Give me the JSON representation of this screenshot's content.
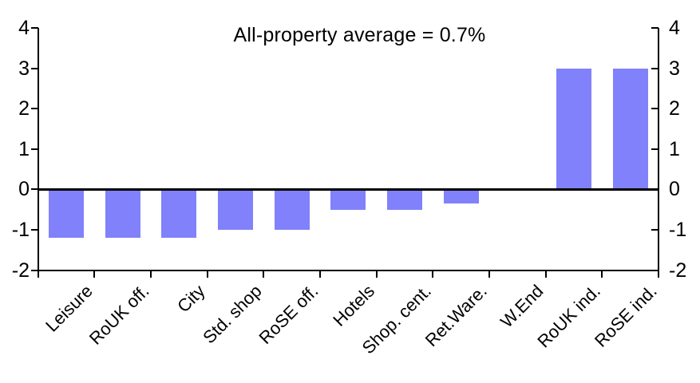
{
  "chart_data": {
    "type": "bar",
    "title": "All-property average = 0.7%",
    "categories": [
      "Leisure",
      "RoUK off.",
      "City",
      "Std. shop",
      "RoSE off.",
      "Hotels",
      "Shop. cent.",
      "Ret.Ware.",
      "W.End",
      "RoUK ind.",
      "RoSE ind."
    ],
    "values": [
      -1.2,
      -1.2,
      -1.2,
      -1.0,
      -1.0,
      -0.5,
      -0.5,
      -0.35,
      0,
      3.0,
      3.0
    ],
    "xlabel": "",
    "ylabel": "",
    "ylim": [
      -2,
      4
    ],
    "y_ticks": [
      "4",
      "3",
      "2",
      "1",
      "0",
      "-1",
      "-2"
    ],
    "y_tick_values": [
      4,
      3,
      2,
      1,
      0,
      -1,
      -2
    ],
    "dual_y_axis": true,
    "grid": false,
    "legend": false,
    "bar_color": "#8181FB",
    "axis_color": "#000000",
    "background_color": "#FFFFFF"
  }
}
